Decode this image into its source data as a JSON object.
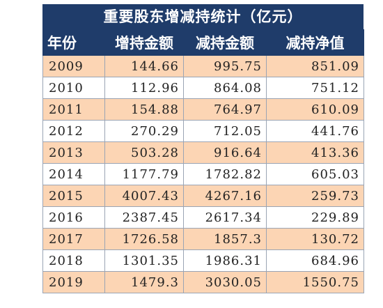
{
  "chart_data": {
    "type": "table",
    "title": "重要股东增减持统计（亿元）",
    "columns": [
      "年份",
      "增持金额",
      "减持金额",
      "减持净值"
    ],
    "rows": [
      [
        "2009",
        "144.66",
        "995.75",
        "851.09"
      ],
      [
        "2010",
        "112.96",
        "864.08",
        "751.12"
      ],
      [
        "2011",
        "154.88",
        "764.97",
        "610.09"
      ],
      [
        "2012",
        "270.29",
        "712.05",
        "441.76"
      ],
      [
        "2013",
        "503.28",
        "916.64",
        "413.36"
      ],
      [
        "2014",
        "1177.79",
        "1782.82",
        "605.03"
      ],
      [
        "2015",
        "4007.43",
        "4267.16",
        "259.73"
      ],
      [
        "2016",
        "2387.45",
        "2617.34",
        "229.89"
      ],
      [
        "2017",
        "1726.58",
        "1857.3",
        "130.72"
      ],
      [
        "2018",
        "1301.35",
        "1986.31",
        "684.96"
      ],
      [
        "2019",
        "1479.3",
        "3030.05",
        "1550.75"
      ]
    ]
  },
  "colors": {
    "header_bg": "#1f3c6a",
    "header_text": "#ffffff",
    "band_row": "#fcd5b4",
    "plain_row": "#ffffff"
  }
}
